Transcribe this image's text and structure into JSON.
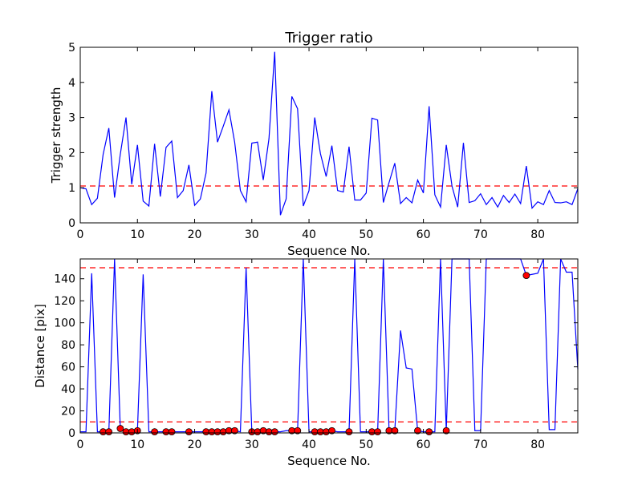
{
  "chart_data": [
    {
      "type": "line",
      "title": "Trigger ratio",
      "xlabel": "Sequence No.",
      "ylabel": "Trigger strength",
      "xlim": [
        0,
        87
      ],
      "ylim": [
        0,
        5
      ],
      "xticks": [
        "0",
        "10",
        "20",
        "30",
        "40",
        "50",
        "60",
        "70",
        "80"
      ],
      "yticks": [
        "0",
        "1",
        "2",
        "3",
        "4",
        "5"
      ],
      "grid": false,
      "threshold": 1.05,
      "threshold_color": "#ff0000",
      "line_color": "#0000ff",
      "x": [
        0,
        1,
        2,
        3,
        4,
        5,
        6,
        7,
        8,
        9,
        10,
        11,
        12,
        13,
        14,
        15,
        16,
        17,
        18,
        19,
        20,
        21,
        22,
        23,
        24,
        25,
        26,
        27,
        28,
        29,
        30,
        31,
        32,
        33,
        34,
        35,
        36,
        37,
        38,
        39,
        40,
        41,
        42,
        43,
        44,
        45,
        46,
        47,
        48,
        49,
        50,
        51,
        52,
        53,
        54,
        55,
        56,
        57,
        58,
        59,
        60,
        61,
        62,
        63,
        64,
        65,
        66,
        67,
        68,
        69,
        70,
        71,
        72,
        73,
        74,
        75,
        76,
        77,
        78,
        79,
        80,
        81,
        82,
        83,
        84,
        85,
        86,
        87
      ],
      "y": [
        1.0,
        0.97,
        0.52,
        0.7,
        1.95,
        2.7,
        0.72,
        1.95,
        3.0,
        1.1,
        2.22,
        0.62,
        0.48,
        2.25,
        0.75,
        2.15,
        2.33,
        0.72,
        0.92,
        1.65,
        0.5,
        0.68,
        1.42,
        3.75,
        2.3,
        2.75,
        3.22,
        2.3,
        0.92,
        0.6,
        2.27,
        2.3,
        1.22,
        2.4,
        4.87,
        0.22,
        0.68,
        3.6,
        3.25,
        0.48,
        0.92,
        3.0,
        1.97,
        1.32,
        2.2,
        0.92,
        0.88,
        2.17,
        0.65,
        0.65,
        0.85,
        2.98,
        2.93,
        0.58,
        1.15,
        1.7,
        0.55,
        0.72,
        0.57,
        1.22,
        0.85,
        3.32,
        0.8,
        0.45,
        2.22,
        1.05,
        0.45,
        2.28,
        0.58,
        0.63,
        0.83,
        0.52,
        0.72,
        0.45,
        0.78,
        0.58,
        0.82,
        0.55,
        1.62,
        0.42,
        0.6,
        0.52,
        0.92,
        0.58,
        0.57,
        0.6,
        0.52,
        0.97
      ]
    },
    {
      "type": "line",
      "title": "",
      "xlabel": "Sequence No.",
      "ylabel": "Distance [pix]",
      "xlim": [
        0,
        87
      ],
      "ylim": [
        0,
        158
      ],
      "xticks": [
        "0",
        "10",
        "20",
        "30",
        "40",
        "50",
        "60",
        "70",
        "80"
      ],
      "yticks": [
        "0",
        "20",
        "40",
        "60",
        "80",
        "100",
        "120",
        "140"
      ],
      "grid": false,
      "thresholds": [
        10,
        150
      ],
      "threshold_color": "#ff0000",
      "line_color": "#0000ff",
      "marker_color": "#ff0000",
      "x": [
        0,
        1,
        2,
        3,
        4,
        5,
        6,
        7,
        8,
        9,
        10,
        11,
        12,
        13,
        14,
        15,
        16,
        17,
        18,
        19,
        20,
        21,
        22,
        23,
        24,
        25,
        26,
        27,
        28,
        29,
        30,
        31,
        32,
        33,
        34,
        35,
        36,
        37,
        38,
        39,
        40,
        41,
        42,
        43,
        44,
        45,
        46,
        47,
        48,
        49,
        50,
        51,
        52,
        53,
        54,
        55,
        56,
        57,
        58,
        59,
        60,
        61,
        62,
        63,
        64,
        65,
        66,
        67,
        68,
        69,
        70,
        71,
        72,
        73,
        74,
        75,
        76,
        77,
        78,
        79,
        80,
        81,
        82,
        83,
        84,
        85,
        86,
        87
      ],
      "y": [
        1,
        1,
        145,
        1,
        1,
        1,
        158,
        4,
        1,
        1,
        2,
        144,
        1,
        1,
        1,
        1,
        1,
        1,
        1,
        1,
        1,
        1,
        1,
        1,
        1,
        1,
        2,
        2,
        1,
        150,
        1,
        1,
        2,
        1,
        1,
        1,
        2,
        2,
        2,
        158,
        1,
        1,
        1,
        1,
        2,
        1,
        1,
        1,
        158,
        1,
        1,
        1,
        1,
        158,
        2,
        2,
        93,
        59,
        58,
        2,
        1,
        1,
        1,
        158,
        2,
        158,
        158,
        158,
        158,
        2,
        2,
        158,
        158,
        158,
        158,
        158,
        158,
        158,
        143,
        144,
        145,
        158,
        3,
        3,
        158,
        146,
        146,
        58
      ],
      "markers": {
        "x": [
          4,
          5,
          7,
          8,
          9,
          10,
          13,
          15,
          16,
          19,
          22,
          23,
          24,
          25,
          26,
          27,
          30,
          31,
          32,
          33,
          34,
          37,
          38,
          41,
          42,
          43,
          44,
          47,
          51,
          52,
          54,
          55,
          59,
          61,
          64,
          78
        ],
        "y": [
          1,
          1,
          4,
          1,
          1,
          2,
          1,
          1,
          1,
          1,
          1,
          1,
          1,
          1,
          2,
          2,
          1,
          1,
          2,
          1,
          1,
          2,
          2,
          1,
          1,
          1,
          2,
          1,
          1,
          1,
          2,
          2,
          2,
          1,
          2,
          143
        ]
      }
    }
  ]
}
